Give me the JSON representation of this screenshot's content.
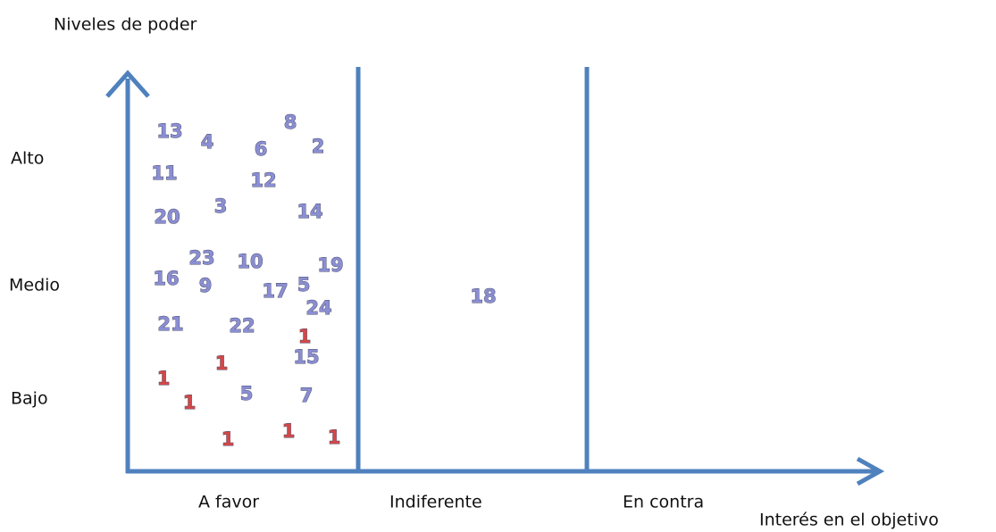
{
  "title": "Niveles de poder",
  "x_axis_title": "Interés en el objetivo",
  "y_levels": [
    "Alto",
    "Medio",
    "Bajo"
  ],
  "x_categories": [
    "A favor",
    "Indiferente",
    "En contra"
  ],
  "markers": [
    {
      "text": "13",
      "color": "#8a8ed2"
    },
    {
      "text": "4",
      "color": "#8a8ed2"
    },
    {
      "text": "8",
      "color": "#8a8ed2"
    },
    {
      "text": "6",
      "color": "#8a8ed2"
    },
    {
      "text": "2",
      "color": "#8a8ed2"
    },
    {
      "text": "11",
      "color": "#8a8ed2"
    },
    {
      "text": "12",
      "color": "#8a8ed2"
    },
    {
      "text": "3",
      "color": "#8a8ed2"
    },
    {
      "text": "20",
      "color": "#8a8ed2"
    },
    {
      "text": "14",
      "color": "#8a8ed2"
    },
    {
      "text": "23",
      "color": "#8a8ed2"
    },
    {
      "text": "10",
      "color": "#8a8ed2"
    },
    {
      "text": "19",
      "color": "#8a8ed2"
    },
    {
      "text": "16",
      "color": "#8a8ed2"
    },
    {
      "text": "9",
      "color": "#8a8ed2"
    },
    {
      "text": "17",
      "color": "#8a8ed2"
    },
    {
      "text": "5",
      "color": "#8a8ed2"
    },
    {
      "text": "24",
      "color": "#8a8ed2"
    },
    {
      "text": "18",
      "color": "#8a8ed2"
    },
    {
      "text": "21",
      "color": "#8a8ed2"
    },
    {
      "text": "22",
      "color": "#8a8ed2"
    },
    {
      "text": "1",
      "color": "#d24848"
    },
    {
      "text": "15",
      "color": "#8a8ed2"
    },
    {
      "text": "1",
      "color": "#d24848"
    },
    {
      "text": "1",
      "color": "#d24848"
    },
    {
      "text": "1",
      "color": "#d24848"
    },
    {
      "text": "5",
      "color": "#8a8ed2"
    },
    {
      "text": "7",
      "color": "#8a8ed2"
    },
    {
      "text": "1",
      "color": "#d24848"
    },
    {
      "text": "1",
      "color": "#d24848"
    },
    {
      "text": "1",
      "color": "#d24848"
    }
  ]
}
